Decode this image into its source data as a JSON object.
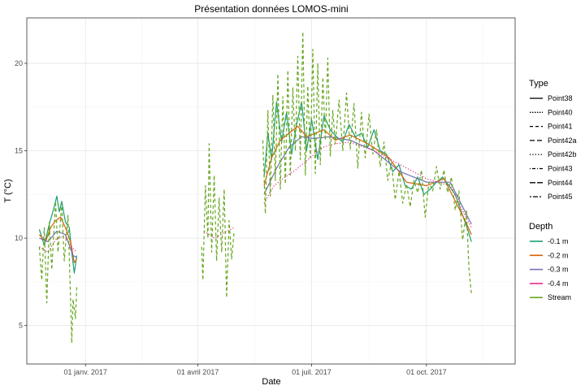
{
  "chart_data": {
    "type": "line",
    "title": "Présentation données LOMOS-mini",
    "xlabel": "Date",
    "ylabel": "T (°C)",
    "xlim": [
      "2016-11-15",
      "2017-12-11"
    ],
    "ylim": [
      2.8,
      22.6
    ],
    "x_ticks": [
      {
        "date": "2017-01-01",
        "label": "01 janv. 2017"
      },
      {
        "date": "2017-04-01",
        "label": "01 avril 2017"
      },
      {
        "date": "2017-07-01",
        "label": "01 juil. 2017"
      },
      {
        "date": "2017-10-01",
        "label": "01 oct. 2017"
      }
    ],
    "y_ticks": [
      5,
      10,
      15,
      20
    ],
    "grid": true,
    "legend_placement": "right",
    "legend_type": {
      "title": "Type",
      "entries": [
        {
          "label": "Point38",
          "dash": "solid"
        },
        {
          "label": "Point40",
          "dash": "dotted-fine"
        },
        {
          "label": "Point41",
          "dash": "dashed"
        },
        {
          "label": "Point42a",
          "dash": "long-dash"
        },
        {
          "label": "Point42b",
          "dash": "dotted"
        },
        {
          "label": "Point43",
          "dash": "dot-dash"
        },
        {
          "label": "Point44",
          "dash": "long-dash-2"
        },
        {
          "label": "Point45",
          "dash": "two-dash"
        }
      ]
    },
    "legend_depth": {
      "title": "Depth",
      "entries": [
        {
          "label": "-0.1 m",
          "color": "#1b9e77"
        },
        {
          "label": "-0.2 m",
          "color": "#d95f02"
        },
        {
          "label": "-0.3 m",
          "color": "#7570b3"
        },
        {
          "label": "-0.4 m",
          "color": "#e7298a"
        },
        {
          "label": "Stream",
          "color": "#66a61e"
        }
      ]
    },
    "series": [
      {
        "name": "-0.1 m",
        "color": "#1b9e77",
        "dash": "solid",
        "segments": [
          [
            [
              "2016-11-25",
              10.5
            ],
            [
              "2016-11-29",
              9.6
            ],
            [
              "2016-12-03",
              10.8
            ],
            [
              "2016-12-07",
              11.8
            ],
            [
              "2016-12-09",
              12.4
            ],
            [
              "2016-12-11",
              11.5
            ],
            [
              "2016-12-13",
              12.1
            ],
            [
              "2016-12-16",
              10.9
            ],
            [
              "2016-12-19",
              10.6
            ],
            [
              "2016-12-21",
              9.2
            ],
            [
              "2016-12-23",
              8.0
            ],
            [
              "2016-12-25",
              9.0
            ]
          ],
          [
            [
              "2017-05-24",
              13.5
            ],
            [
              "2017-05-27",
              16.0
            ],
            [
              "2017-05-30",
              14.5
            ],
            [
              "2017-06-03",
              17.8
            ],
            [
              "2017-06-07",
              15.5
            ],
            [
              "2017-06-11",
              17.2
            ],
            [
              "2017-06-15",
              14.8
            ],
            [
              "2017-06-19",
              16.5
            ],
            [
              "2017-06-23",
              17.8
            ],
            [
              "2017-06-27",
              15.0
            ],
            [
              "2017-07-01",
              16.8
            ],
            [
              "2017-07-06",
              14.5
            ],
            [
              "2017-07-11",
              17.0
            ],
            [
              "2017-07-16",
              16.2
            ],
            [
              "2017-07-21",
              15.8
            ],
            [
              "2017-07-26",
              15.5
            ],
            [
              "2017-07-31",
              16.5
            ],
            [
              "2017-08-05",
              15.8
            ],
            [
              "2017-08-10",
              16.0
            ],
            [
              "2017-08-15",
              15.2
            ],
            [
              "2017-08-20",
              16.2
            ],
            [
              "2017-08-25",
              15.0
            ],
            [
              "2017-08-30",
              14.8
            ],
            [
              "2017-09-04",
              13.8
            ],
            [
              "2017-09-09",
              14.2
            ],
            [
              "2017-09-14",
              13.0
            ],
            [
              "2017-09-19",
              12.8
            ],
            [
              "2017-09-24",
              13.5
            ],
            [
              "2017-09-29",
              12.5
            ],
            [
              "2017-10-04",
              12.8
            ],
            [
              "2017-10-09",
              13.2
            ],
            [
              "2017-10-14",
              13.5
            ],
            [
              "2017-10-19",
              13.0
            ],
            [
              "2017-10-24",
              12.5
            ],
            [
              "2017-10-29",
              11.5
            ],
            [
              "2017-11-03",
              10.5
            ],
            [
              "2017-11-06",
              9.8
            ]
          ]
        ]
      },
      {
        "name": "-0.2 m",
        "color": "#d95f02",
        "dash": "solid",
        "segments": [
          [
            [
              "2016-11-25",
              10.2
            ],
            [
              "2016-11-30",
              9.8
            ],
            [
              "2016-12-04",
              10.6
            ],
            [
              "2016-12-08",
              11.0
            ],
            [
              "2016-12-12",
              11.2
            ],
            [
              "2016-12-16",
              10.6
            ],
            [
              "2016-12-20",
              9.8
            ],
            [
              "2016-12-23",
              8.6
            ],
            [
              "2016-12-25",
              8.8
            ]
          ],
          [
            [
              "2017-05-24",
              13.0
            ],
            [
              "2017-05-30",
              14.6
            ],
            [
              "2017-06-06",
              15.6
            ],
            [
              "2017-06-13",
              16.0
            ],
            [
              "2017-06-20",
              16.4
            ],
            [
              "2017-06-27",
              15.8
            ],
            [
              "2017-07-04",
              16.0
            ],
            [
              "2017-07-11",
              16.2
            ],
            [
              "2017-07-20",
              15.6
            ],
            [
              "2017-08-01",
              15.9
            ],
            [
              "2017-08-15",
              15.4
            ],
            [
              "2017-09-01",
              14.6
            ],
            [
              "2017-09-15",
              13.2
            ],
            [
              "2017-10-01",
              13.0
            ],
            [
              "2017-10-15",
              13.4
            ],
            [
              "2017-11-01",
              11.0
            ],
            [
              "2017-11-06",
              10.2
            ]
          ]
        ]
      },
      {
        "name": "-0.3 m",
        "color": "#7570b3",
        "dash": "solid",
        "segments": [
          [
            [
              "2016-11-25",
              10.0
            ],
            [
              "2016-12-02",
              9.8
            ],
            [
              "2016-12-09",
              10.4
            ],
            [
              "2016-12-16",
              10.2
            ],
            [
              "2016-12-22",
              9.0
            ],
            [
              "2016-12-25",
              8.9
            ]
          ],
          [
            [
              "2017-05-24",
              12.5
            ],
            [
              "2017-06-03",
              14.0
            ],
            [
              "2017-06-13",
              15.2
            ],
            [
              "2017-06-23",
              15.8
            ],
            [
              "2017-07-03",
              15.7
            ],
            [
              "2017-07-15",
              15.8
            ],
            [
              "2017-08-01",
              15.6
            ],
            [
              "2017-08-20",
              15.0
            ],
            [
              "2017-09-10",
              13.8
            ],
            [
              "2017-10-01",
              13.2
            ],
            [
              "2017-10-20",
              13.2
            ],
            [
              "2017-11-06",
              10.8
            ]
          ]
        ]
      },
      {
        "name": "-0.4 m",
        "color": "#e7298a",
        "dash": "dotted",
        "segments": [
          [
            [
              "2016-11-25",
              9.5
            ],
            [
              "2016-12-02",
              9.2
            ],
            [
              "2016-12-09",
              10.0
            ],
            [
              "2016-12-16",
              10.1
            ],
            [
              "2016-12-22",
              9.4
            ],
            [
              "2016-12-25",
              9.2
            ]
          ],
          [
            [
              "2017-04-06",
              10.4
            ],
            [
              "2017-04-14",
              10.0
            ],
            [
              "2017-04-22",
              10.3
            ],
            [
              "2017-04-30",
              10.6
            ]
          ],
          [
            [
              "2017-05-24",
              12.0
            ],
            [
              "2017-06-01",
              13.0
            ],
            [
              "2017-06-10",
              13.5
            ],
            [
              "2017-06-20",
              14.0
            ],
            [
              "2017-06-30",
              14.6
            ],
            [
              "2017-07-10",
              15.2
            ],
            [
              "2017-07-20",
              15.4
            ],
            [
              "2017-08-01",
              15.5
            ],
            [
              "2017-08-20",
              15.0
            ],
            [
              "2017-09-10",
              14.2
            ],
            [
              "2017-10-01",
              13.4
            ],
            [
              "2017-10-20",
              13.0
            ],
            [
              "2017-11-06",
              10.6
            ]
          ]
        ]
      },
      {
        "name": "Stream",
        "color": "#66a61e",
        "dash": "dashed",
        "segments": [
          [
            [
              "2016-11-25",
              9.5
            ],
            [
              "2016-11-27",
              7.6
            ],
            [
              "2016-11-29",
              10.6
            ],
            [
              "2016-12-01",
              6.3
            ],
            [
              "2016-12-03",
              10.9
            ],
            [
              "2016-12-05",
              8.2
            ],
            [
              "2016-12-08",
              12.1
            ],
            [
              "2016-12-10",
              9.2
            ],
            [
              "2016-12-13",
              12.0
            ],
            [
              "2016-12-15",
              8.7
            ],
            [
              "2016-12-18",
              11.3
            ],
            [
              "2016-12-20",
              6.6
            ],
            [
              "2016-12-21",
              4.0
            ],
            [
              "2016-12-22",
              6.5
            ],
            [
              "2016-12-24",
              5.4
            ],
            [
              "2016-12-25",
              7.3
            ]
          ],
          [
            [
              "2017-04-04",
              9.5
            ],
            [
              "2017-04-05",
              7.6
            ],
            [
              "2017-04-07",
              13.0
            ],
            [
              "2017-04-09",
              10.0
            ],
            [
              "2017-04-10",
              15.4
            ],
            [
              "2017-04-12",
              9.2
            ],
            [
              "2017-04-14",
              13.6
            ],
            [
              "2017-04-16",
              8.7
            ],
            [
              "2017-04-18",
              12.3
            ],
            [
              "2017-04-20",
              9.2
            ],
            [
              "2017-04-22",
              12.8
            ],
            [
              "2017-04-24",
              6.6
            ],
            [
              "2017-04-26",
              11.0
            ],
            [
              "2017-04-28",
              8.8
            ],
            [
              "2017-04-30",
              10.4
            ]
          ],
          [
            [
              "2017-05-23",
              15.6
            ],
            [
              "2017-05-25",
              11.4
            ],
            [
              "2017-05-27",
              17.3
            ],
            [
              "2017-05-29",
              12.4
            ],
            [
              "2017-05-31",
              18.2
            ],
            [
              "2017-06-02",
              13.3
            ],
            [
              "2017-06-04",
              19.4
            ],
            [
              "2017-06-06",
              12.8
            ],
            [
              "2017-06-08",
              18.1
            ],
            [
              "2017-06-10",
              13.1
            ],
            [
              "2017-06-12",
              19.6
            ],
            [
              "2017-06-14",
              13.6
            ],
            [
              "2017-06-16",
              18.6
            ],
            [
              "2017-06-18",
              15.0
            ],
            [
              "2017-06-20",
              20.4
            ],
            [
              "2017-06-22",
              14.5
            ],
            [
              "2017-06-24",
              21.8
            ],
            [
              "2017-06-26",
              13.6
            ],
            [
              "2017-06-28",
              18.7
            ],
            [
              "2017-06-30",
              14.6
            ],
            [
              "2017-07-02",
              20.8
            ],
            [
              "2017-07-04",
              13.7
            ],
            [
              "2017-07-06",
              20.0
            ],
            [
              "2017-07-08",
              14.2
            ],
            [
              "2017-07-10",
              19.2
            ],
            [
              "2017-07-12",
              15.6
            ],
            [
              "2017-07-14",
              20.3
            ],
            [
              "2017-07-16",
              14.7
            ],
            [
              "2017-07-18",
              17.3
            ],
            [
              "2017-07-20",
              15.4
            ],
            [
              "2017-07-23",
              17.9
            ],
            [
              "2017-07-26",
              15.0
            ],
            [
              "2017-07-29",
              18.3
            ],
            [
              "2017-08-01",
              15.1
            ],
            [
              "2017-08-04",
              17.7
            ],
            [
              "2017-08-07",
              14.0
            ],
            [
              "2017-08-10",
              17.2
            ],
            [
              "2017-08-13",
              14.6
            ],
            [
              "2017-08-16",
              17.1
            ],
            [
              "2017-08-19",
              14.8
            ],
            [
              "2017-08-22",
              16.2
            ],
            [
              "2017-08-25",
              14.1
            ],
            [
              "2017-08-28",
              15.5
            ],
            [
              "2017-08-31",
              13.3
            ],
            [
              "2017-09-03",
              14.3
            ],
            [
              "2017-09-06",
              12.2
            ],
            [
              "2017-09-09",
              13.8
            ],
            [
              "2017-09-12",
              12.0
            ],
            [
              "2017-09-15",
              13.1
            ],
            [
              "2017-09-18",
              11.8
            ],
            [
              "2017-09-21",
              13.3
            ],
            [
              "2017-09-24",
              12.6
            ],
            [
              "2017-09-27",
              13.9
            ],
            [
              "2017-09-30",
              11.2
            ],
            [
              "2017-10-03",
              13.2
            ],
            [
              "2017-10-06",
              12.7
            ],
            [
              "2017-10-09",
              14.1
            ],
            [
              "2017-10-12",
              12.8
            ],
            [
              "2017-10-15",
              13.9
            ],
            [
              "2017-10-18",
              12.6
            ],
            [
              "2017-10-21",
              13.5
            ],
            [
              "2017-10-24",
              11.6
            ],
            [
              "2017-10-27",
              12.7
            ],
            [
              "2017-10-30",
              9.9
            ],
            [
              "2017-11-02",
              11.6
            ],
            [
              "2017-11-04",
              8.3
            ],
            [
              "2017-11-06",
              6.8
            ]
          ]
        ]
      }
    ]
  }
}
